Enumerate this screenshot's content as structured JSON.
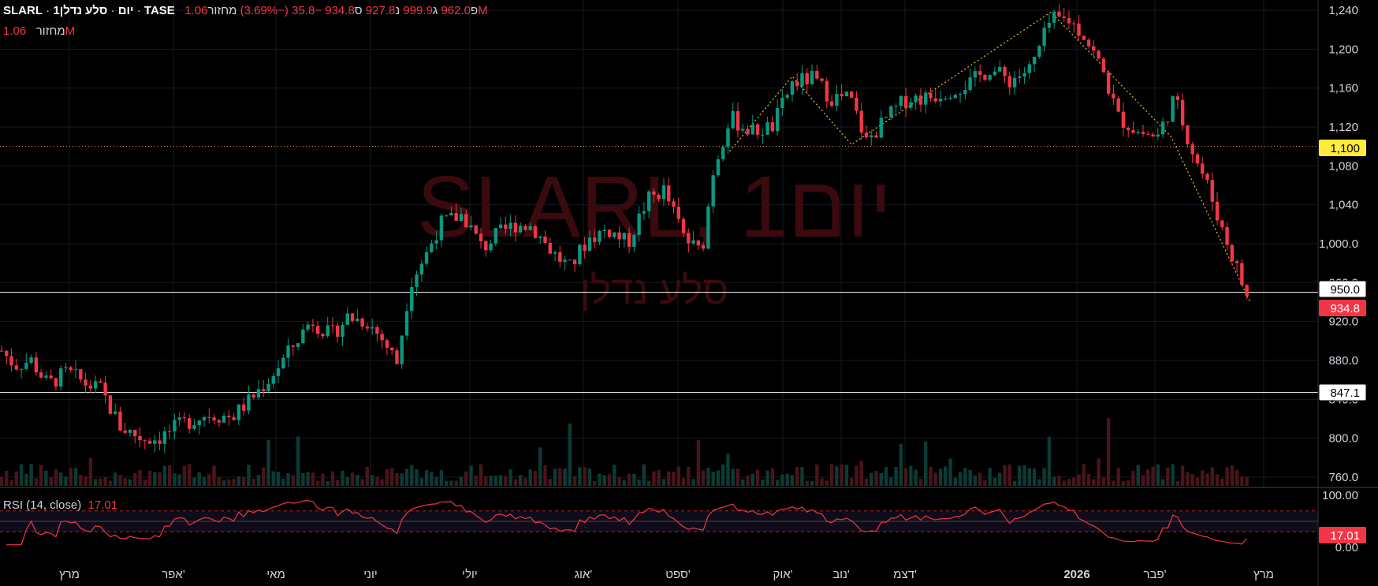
{
  "header": {
    "symbol": "SLARL",
    "interval": "1יום",
    "name": "סלע נדלן",
    "exchange": "TASE",
    "sep": "·",
    "open_label": "פ",
    "open": "962.0",
    "high_label": "ג",
    "high": "999.9",
    "low_label": "נ",
    "low": "927.8",
    "close_label": "ס",
    "close": "934.8",
    "change": "−35.8 (−3.69%)",
    "volume_label": "מחזור",
    "volume": "1.06M"
  },
  "volume_legend": {
    "label": "מחזור",
    "value": "1.06M"
  },
  "watermark": {
    "line1": "SLARL, 1יום",
    "line2": "סלע נדלן"
  },
  "rsi_legend": {
    "label": "RSI (14, close)",
    "value": "17.01"
  },
  "colors": {
    "up": "#089981",
    "down": "#f23645",
    "zigzag": "#e6c229",
    "hline": "#ffffff",
    "dotted_line": "#e6a23c",
    "rsi_line": "#f23645",
    "rsi_band": "#7e57c2"
  },
  "chart_data": {
    "type": "candlestick",
    "y_axis": {
      "ticks": [
        760,
        800,
        840,
        880,
        920,
        960,
        1000,
        1040,
        1080,
        1120,
        1160,
        1200,
        1240
      ],
      "tick_labels": [
        "760.0",
        "800.0",
        "840.0",
        "880.0",
        "920.0",
        "960.0",
        "1,000.0",
        "1,040",
        "1,080",
        "1,120",
        "1,160",
        "1,200",
        "1,240"
      ],
      "range": [
        755,
        1245
      ]
    },
    "x_axis": {
      "labels": [
        "מרץ",
        "אפר'",
        "מאי",
        "יוני",
        "יולי",
        "אוג'",
        "ספט'",
        "אוק'",
        "נוב'",
        "דצמ'",
        "2026",
        "פבר'",
        "מרץ"
      ]
    },
    "horizontal_lines": [
      {
        "value": 950.0,
        "label": "950.0",
        "style": "solid"
      },
      {
        "value": 847.1,
        "label": "847.1",
        "style": "solid"
      },
      {
        "value": 1100,
        "label": "1,100",
        "style": "dotted"
      }
    ],
    "last_price": {
      "value": 934.8,
      "label": "934.8"
    },
    "anchors": [
      [
        0,
        890
      ],
      [
        8,
        875
      ],
      [
        18,
        880
      ],
      [
        28,
        855
      ],
      [
        40,
        868
      ],
      [
        52,
        855
      ],
      [
        60,
        850
      ],
      [
        72,
        812
      ],
      [
        85,
        800
      ],
      [
        95,
        800
      ],
      [
        110,
        815
      ],
      [
        125,
        825
      ],
      [
        140,
        822
      ],
      [
        150,
        838
      ],
      [
        162,
        860
      ],
      [
        175,
        890
      ],
      [
        188,
        922
      ],
      [
        200,
        905
      ],
      [
        210,
        925
      ],
      [
        222,
        920
      ],
      [
        232,
        900
      ],
      [
        240,
        878
      ],
      [
        248,
        960
      ],
      [
        258,
        990
      ],
      [
        266,
        1020
      ],
      [
        280,
        1030
      ],
      [
        292,
        995
      ],
      [
        300,
        1008
      ],
      [
        312,
        1020
      ],
      [
        322,
        1018
      ],
      [
        335,
        990
      ],
      [
        345,
        975
      ],
      [
        356,
        1005
      ],
      [
        368,
        1015
      ],
      [
        380,
        1000
      ],
      [
        392,
        1045
      ],
      [
        402,
        1055
      ],
      [
        415,
        1005
      ],
      [
        425,
        990
      ],
      [
        432,
        1075
      ],
      [
        442,
        1130
      ],
      [
        455,
        1115
      ],
      [
        468,
        1120
      ],
      [
        480,
        1165
      ],
      [
        492,
        1170
      ],
      [
        504,
        1150
      ],
      [
        515,
        1150
      ],
      [
        525,
        1105
      ],
      [
        538,
        1130
      ],
      [
        550,
        1150
      ],
      [
        562,
        1150
      ],
      [
        575,
        1158
      ],
      [
        588,
        1165
      ],
      [
        600,
        1180
      ],
      [
        612,
        1168
      ],
      [
        625,
        1180
      ],
      [
        637,
        1230
      ],
      [
        648,
        1230
      ],
      [
        657,
        1215
      ],
      [
        668,
        1180
      ],
      [
        678,
        1130
      ],
      [
        690,
        1115
      ],
      [
        702,
        1110
      ],
      [
        712,
        1150
      ],
      [
        722,
        1100
      ],
      [
        732,
        1060
      ],
      [
        742,
        1010
      ],
      [
        750,
        975
      ],
      [
        758,
        935
      ]
    ],
    "rsi": {
      "value": 17.01,
      "levels": [
        70,
        30
      ],
      "ticks": [
        "100.00",
        "0.00"
      ]
    }
  },
  "price_tags": {
    "p1100": "1,100",
    "p950": "950.0",
    "pcur": "934.8",
    "p847": "847.1",
    "rsi": "17.01"
  }
}
